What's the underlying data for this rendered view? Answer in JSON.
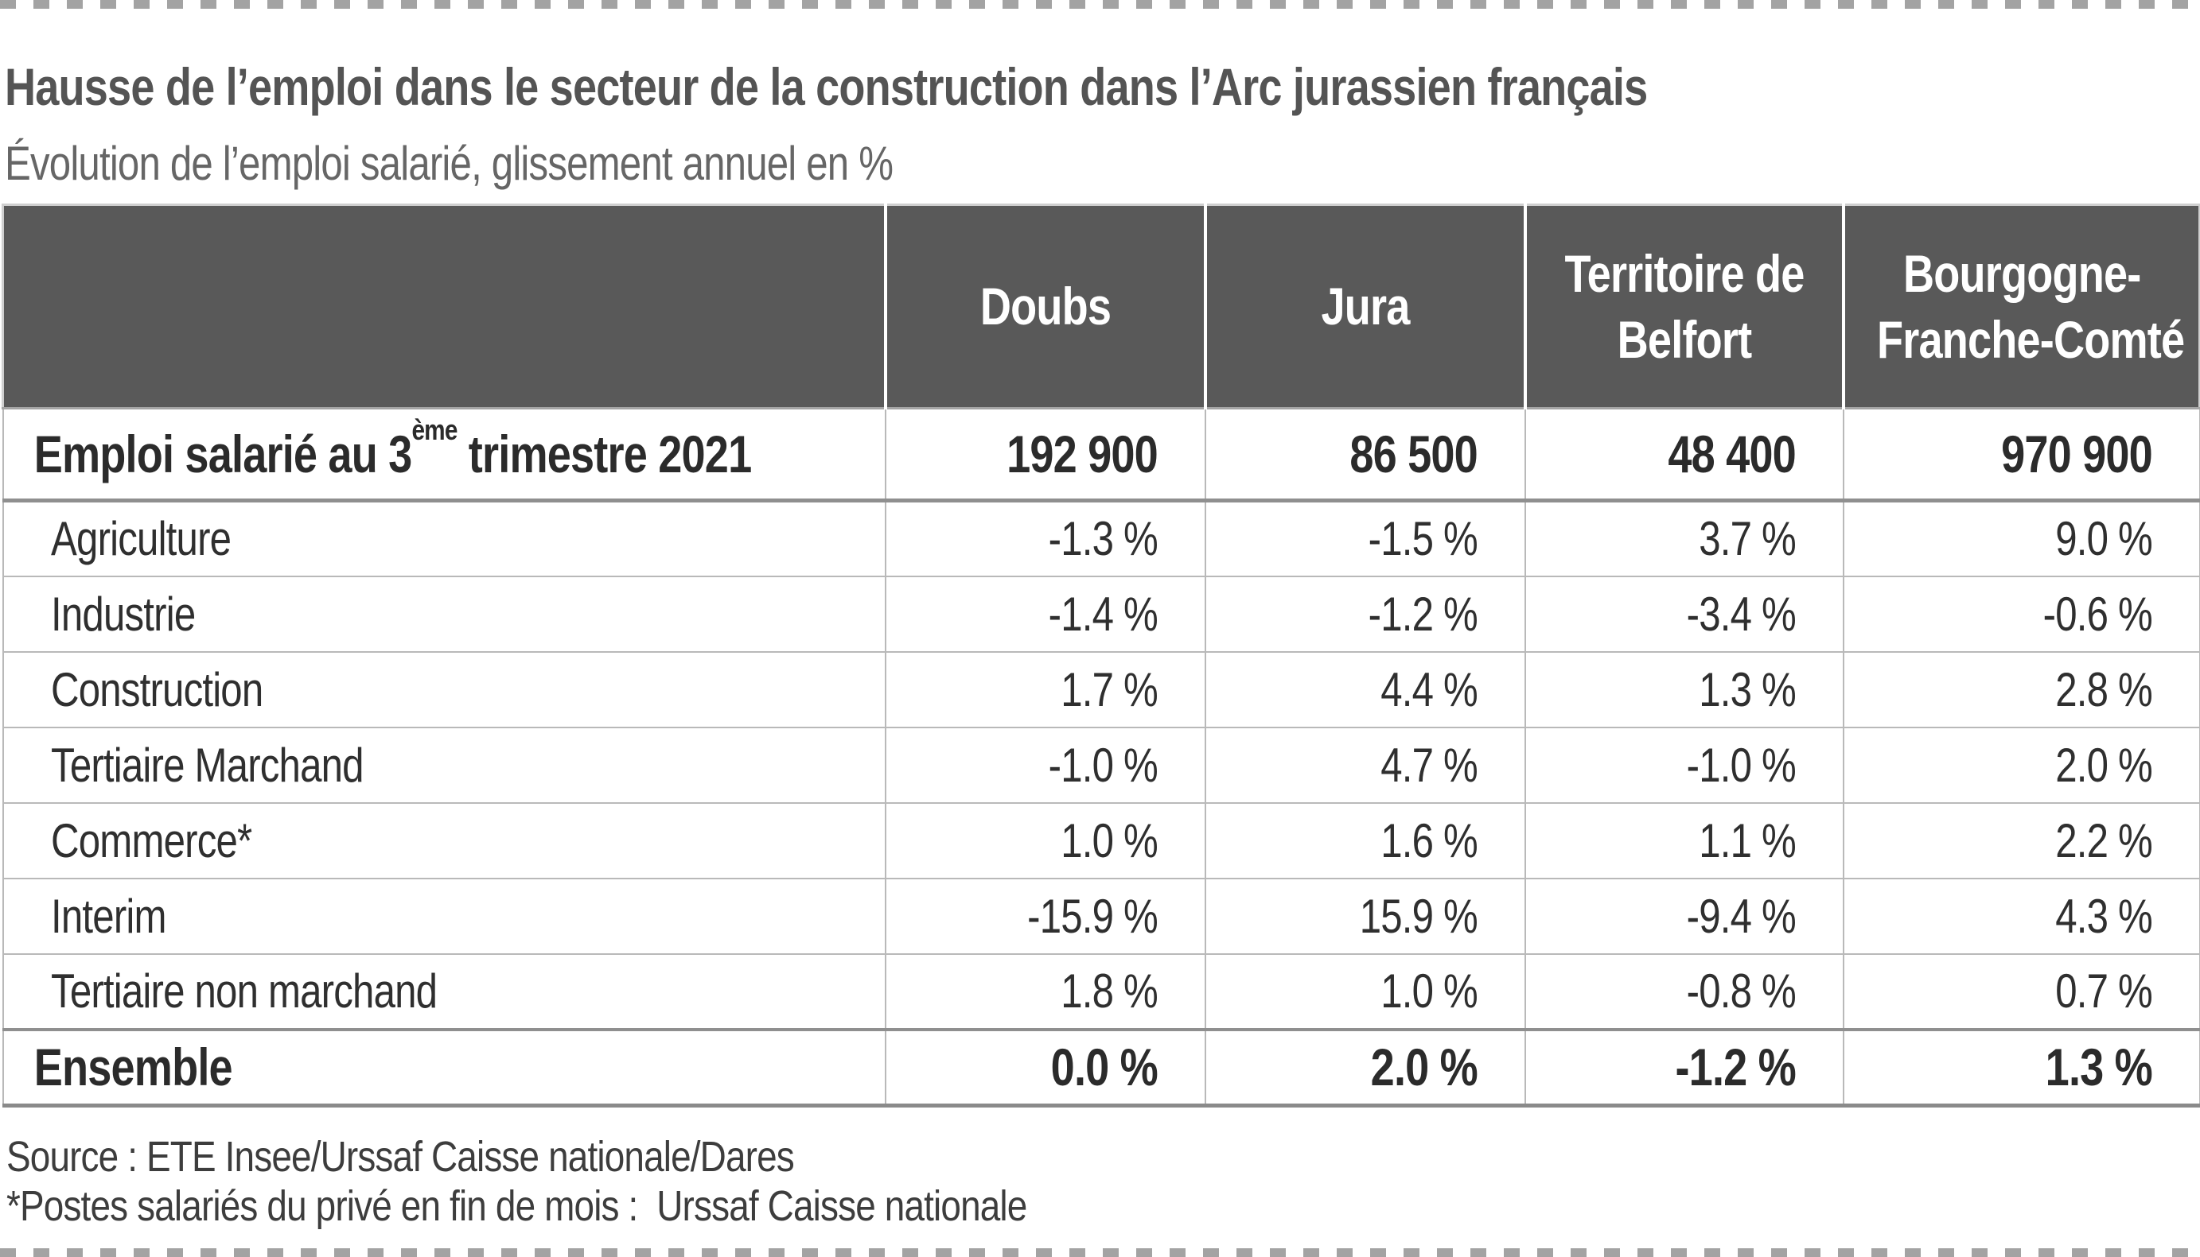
{
  "page": {
    "title": "Hausse de l’emploi dans le secteur de la construction dans l’Arc jurassien français",
    "subtitle": "Évolution de l’emploi salarié, glissement annuel en %"
  },
  "table": {
    "columns": [
      {
        "lines": [
          "Doubs"
        ]
      },
      {
        "lines": [
          "Jura"
        ]
      },
      {
        "lines": [
          "Territoire de",
          "Belfort"
        ]
      },
      {
        "lines": [
          "Bourgogne-",
          "Franche-Comté"
        ]
      }
    ],
    "summary_row": {
      "label_prefix": "Emploi salarié au 3",
      "label_sup": "ème",
      "label_suffix": " trimestre 2021",
      "values": [
        "192 900",
        "86 500",
        "48 400",
        "970 900"
      ]
    },
    "rows": [
      {
        "label": "Agriculture",
        "values": [
          "-1.3 %",
          "-1.5 %",
          "3.7 %",
          "9.0 %"
        ]
      },
      {
        "label": "Industrie",
        "values": [
          "-1.4 %",
          "-1.2 %",
          "-3.4 %",
          "-0.6 %"
        ]
      },
      {
        "label": "Construction",
        "values": [
          "1.7 %",
          "4.4 %",
          "1.3 %",
          "2.8 %"
        ]
      },
      {
        "label": "Tertiaire Marchand",
        "values": [
          "-1.0 %",
          "4.7 %",
          "-1.0 %",
          "2.0 %"
        ]
      },
      {
        "label": "Commerce*",
        "values": [
          "1.0 %",
          "1.6 %",
          "1.1 %",
          "2.2 %"
        ]
      },
      {
        "label": "Interim",
        "values": [
          "-15.9 %",
          "15.9 %",
          "-9.4 %",
          "4.3 %"
        ]
      },
      {
        "label": "Tertiaire non marchand",
        "values": [
          "1.8 %",
          "1.0 %",
          "-0.8 %",
          "0.7 %"
        ]
      }
    ],
    "total_row": {
      "label": "Ensemble",
      "values": [
        "0.0 %",
        "2.0 %",
        "-1.2 %",
        "1.3 %"
      ]
    }
  },
  "footer": {
    "source": "Source : ETE Insee/Urssaf Caisse nationale/Dares",
    "note": "*Postes salariés du privé en fin de mois :  Urssaf Caisse nationale"
  },
  "colors": {
    "header_background": "#595959",
    "header_text": "#ffffff",
    "grid_line": "#b9b9b9",
    "strong_line": "#8f8f8f",
    "title_text": "#545454",
    "subtitle_text": "#666666",
    "body_text": "#2f2f2f",
    "dash_border": "#a3a3a3"
  },
  "chart_data": {
    "type": "table",
    "title": "Hausse de l’emploi dans le secteur de la construction dans l’Arc jurassien français",
    "subtitle": "Évolution de l’emploi salarié, glissement annuel en %",
    "regions": [
      "Doubs",
      "Jura",
      "Territoire de Belfort",
      "Bourgogne-Franche-Comté"
    ],
    "emploi_salarie_au_3eme_trimestre_2021": [
      192900,
      86500,
      48400,
      970900
    ],
    "glissement_annuel_pct": {
      "Agriculture": [
        -1.3,
        -1.5,
        3.7,
        9.0
      ],
      "Industrie": [
        -1.4,
        -1.2,
        -3.4,
        -0.6
      ],
      "Construction": [
        1.7,
        4.4,
        1.3,
        2.8
      ],
      "Tertiaire Marchand": [
        -1.0,
        4.7,
        -1.0,
        2.0
      ],
      "Commerce*": [
        1.0,
        1.6,
        1.1,
        2.2
      ],
      "Interim": [
        -15.9,
        15.9,
        -9.4,
        4.3
      ],
      "Tertiaire non marchand": [
        1.8,
        1.0,
        -0.8,
        0.7
      ],
      "Ensemble": [
        0.0,
        2.0,
        -1.2,
        1.3
      ]
    },
    "source": "Source : ETE Insee/Urssaf Caisse nationale/Dares",
    "note": "*Postes salariés du privé en fin de mois :  Urssaf Caisse nationale"
  }
}
